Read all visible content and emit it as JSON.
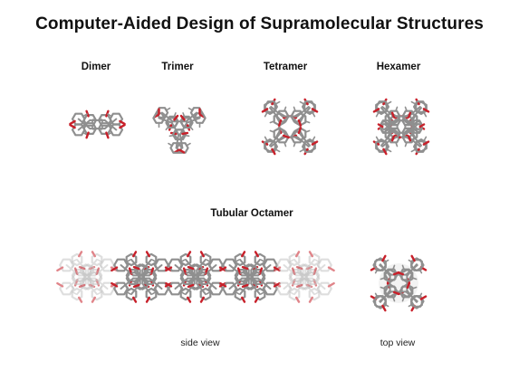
{
  "title": "Computer-Aided Design of Supramolecular Structures",
  "structures": [
    {
      "label": "Dimer",
      "units": 2
    },
    {
      "label": "Trimer",
      "units": 3
    },
    {
      "label": "Tetramer",
      "units": 4
    },
    {
      "label": "Hexamer",
      "units": 6
    }
  ],
  "octamer": {
    "label": "Tubular  Octamer",
    "side_view_caption": "side view",
    "top_view_caption": "top view"
  },
  "colors": {
    "carbon": "#8f8f8f",
    "carbon_light": "#c4c4c4",
    "oxygen": "#c8202a",
    "hydrogen": "#e8e8e8"
  }
}
